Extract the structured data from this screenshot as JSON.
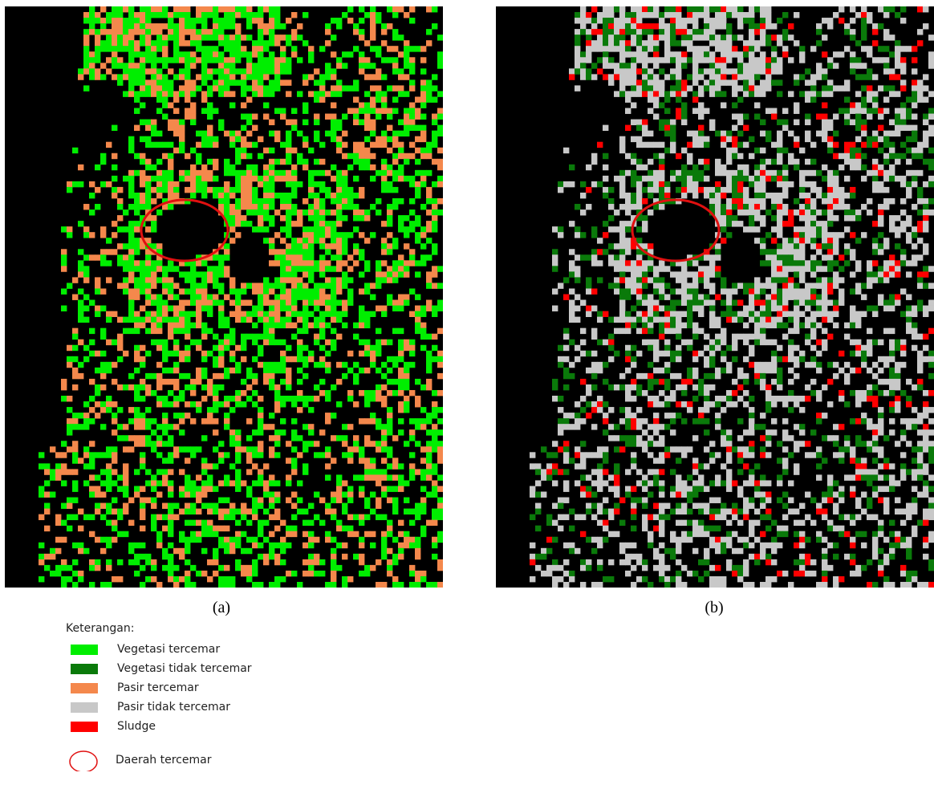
{
  "panels": [
    {
      "id": "a",
      "caption": "(a)",
      "palette": [
        "#00ee00",
        "#f4884c"
      ],
      "weights": [
        0.62,
        0.38
      ]
    },
    {
      "id": "b",
      "caption": "(b)",
      "palette": [
        "#c8c8c8",
        "#0a7a0a",
        "#ff0000"
      ],
      "weights": [
        0.62,
        0.28,
        0.1
      ]
    }
  ],
  "legend": {
    "title": "Keterangan:",
    "items": [
      {
        "label": "Vegetasi tercemar",
        "color": "#00ee00"
      },
      {
        "label": "Vegetasi tidak tercemar",
        "color": "#0a7a0a"
      },
      {
        "label": "Pasir tercemar",
        "color": "#f4884c"
      },
      {
        "label": "Pasir tidak tercemar",
        "color": "#c8c8c8"
      },
      {
        "label": "Sludge",
        "color": "#ff0000"
      }
    ],
    "marker": {
      "label": "Daerah tercemar",
      "color": "#e01010"
    }
  }
}
